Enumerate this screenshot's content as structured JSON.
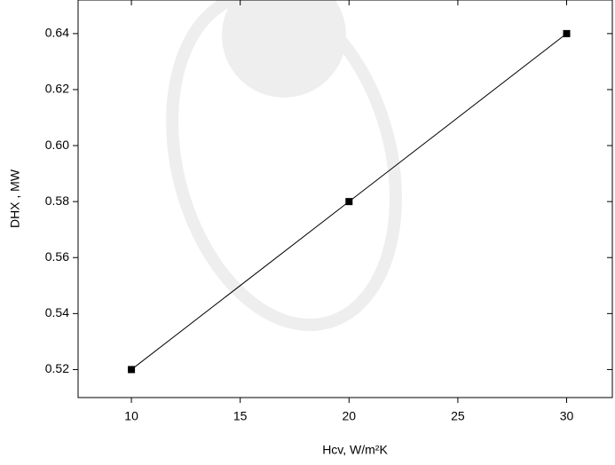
{
  "chart_data": {
    "type": "line",
    "x_label": "Hcv, W/m²K",
    "y_label": "DHX , MW",
    "x": [
      10,
      20,
      30
    ],
    "series": [
      {
        "color": "#000000",
        "values": [
          0.52,
          0.58,
          0.64
        ]
      }
    ],
    "xlim": [
      7.55,
      32.1
    ],
    "ylim": [
      0.51,
      0.652
    ],
    "xticks": [
      10,
      15,
      20,
      25,
      30
    ],
    "yticks": [
      0.52,
      0.54,
      0.56,
      0.58,
      {
        "value": 0.6,
        "label": "0.60"
      },
      0.62,
      0.64
    ]
  }
}
